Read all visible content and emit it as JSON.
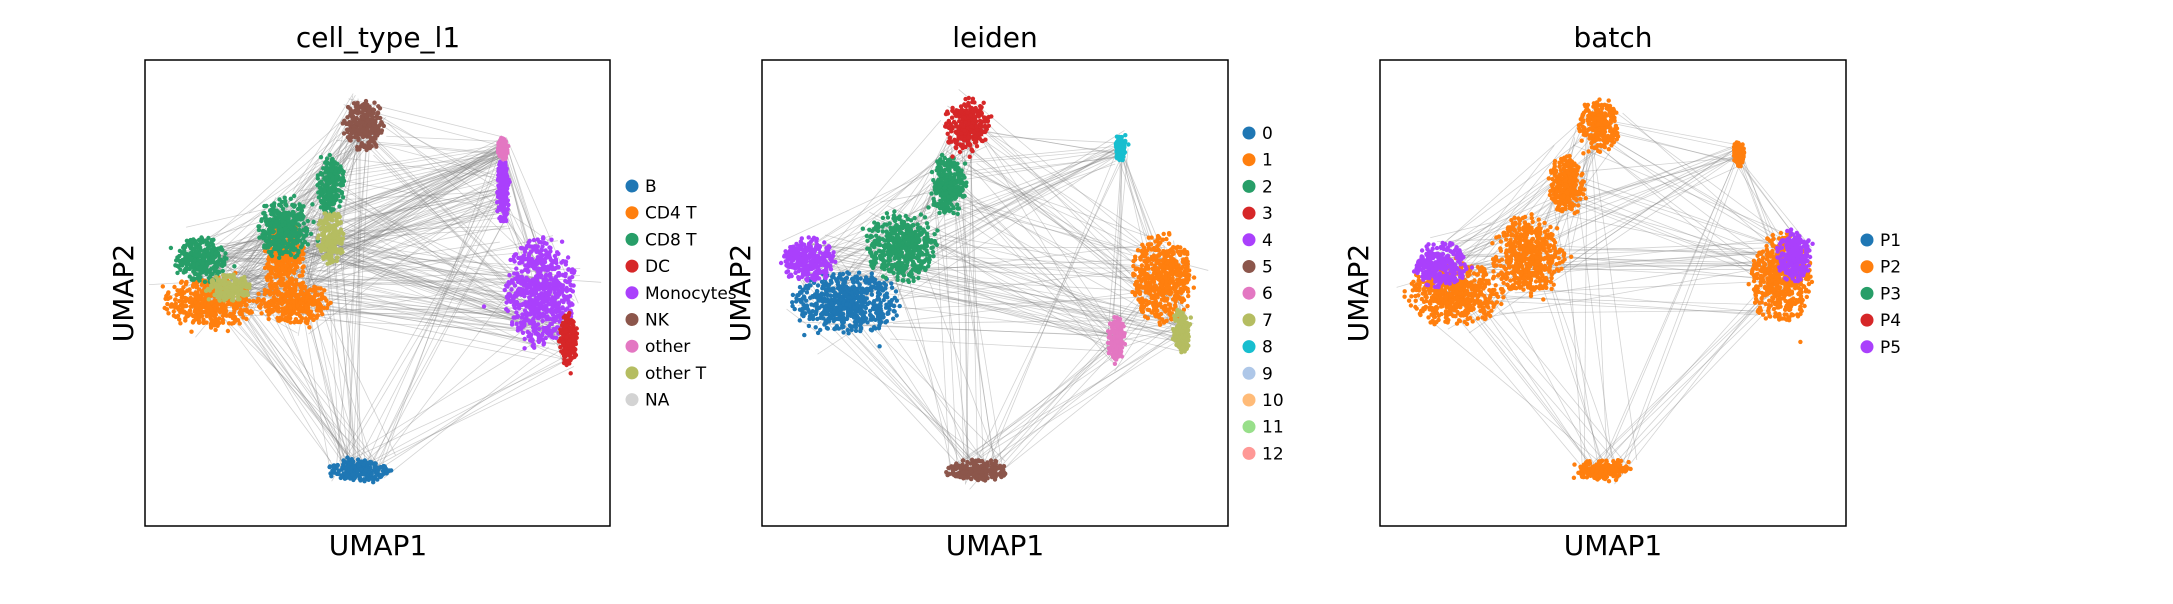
{
  "chart_data": [
    {
      "type": "scatter",
      "title": "cell_type_l1",
      "xlabel": "UMAP1",
      "ylabel": "UMAP2",
      "xticks": [],
      "yticks": [],
      "grid": false,
      "legend_placement": "right",
      "series": [
        {
          "name": "B",
          "color": "#1f77b4"
        },
        {
          "name": "CD4 T",
          "color": "#ff7f0e"
        },
        {
          "name": "CD8 T",
          "color": "#279e68"
        },
        {
          "name": "DC",
          "color": "#d62728"
        },
        {
          "name": "Monocytes",
          "color": "#aa40fc"
        },
        {
          "name": "NK",
          "color": "#8c564b"
        },
        {
          "name": "other",
          "color": "#e377c2"
        },
        {
          "name": "other T",
          "color": "#b5bd61"
        },
        {
          "name": "NA",
          "color": "#d3d3d3"
        }
      ],
      "edge_color": "#808080",
      "clusters": [
        {
          "series": "CD4 T",
          "x": 0.14,
          "y": 0.52,
          "rx": 0.1,
          "ry": 0.06
        },
        {
          "series": "CD4 T",
          "x": 0.32,
          "y": 0.52,
          "rx": 0.08,
          "ry": 0.05
        },
        {
          "series": "CD4 T",
          "x": 0.3,
          "y": 0.42,
          "rx": 0.05,
          "ry": 0.08
        },
        {
          "series": "CD8 T",
          "x": 0.12,
          "y": 0.43,
          "rx": 0.06,
          "ry": 0.05
        },
        {
          "series": "CD8 T",
          "x": 0.3,
          "y": 0.36,
          "rx": 0.06,
          "ry": 0.07
        },
        {
          "series": "CD8 T",
          "x": 0.4,
          "y": 0.27,
          "rx": 0.03,
          "ry": 0.07
        },
        {
          "series": "other T",
          "x": 0.4,
          "y": 0.38,
          "rx": 0.03,
          "ry": 0.06
        },
        {
          "series": "other T",
          "x": 0.18,
          "y": 0.49,
          "rx": 0.05,
          "ry": 0.03
        },
        {
          "series": "NK",
          "x": 0.47,
          "y": 0.14,
          "rx": 0.045,
          "ry": 0.06
        },
        {
          "series": "Monocytes",
          "x": 0.85,
          "y": 0.5,
          "rx": 0.08,
          "ry": 0.12
        },
        {
          "series": "Monocytes",
          "x": 0.77,
          "y": 0.28,
          "rx": 0.015,
          "ry": 0.08
        },
        {
          "series": "DC",
          "x": 0.91,
          "y": 0.6,
          "rx": 0.02,
          "ry": 0.06
        },
        {
          "series": "other",
          "x": 0.77,
          "y": 0.19,
          "rx": 0.012,
          "ry": 0.025
        },
        {
          "series": "B",
          "x": 0.46,
          "y": 0.88,
          "rx": 0.07,
          "ry": 0.025
        }
      ]
    },
    {
      "type": "scatter",
      "title": "leiden",
      "xlabel": "UMAP1",
      "ylabel": "UMAP2",
      "xticks": [],
      "yticks": [],
      "grid": false,
      "legend_placement": "right",
      "series": [
        {
          "name": "0",
          "color": "#1f77b4"
        },
        {
          "name": "1",
          "color": "#ff7f0e"
        },
        {
          "name": "2",
          "color": "#279e68"
        },
        {
          "name": "3",
          "color": "#d62728"
        },
        {
          "name": "4",
          "color": "#aa40fc"
        },
        {
          "name": "5",
          "color": "#8c564b"
        },
        {
          "name": "6",
          "color": "#e377c2"
        },
        {
          "name": "7",
          "color": "#b5bd61"
        },
        {
          "name": "8",
          "color": "#17becf"
        },
        {
          "name": "9",
          "color": "#aec7e8"
        },
        {
          "name": "10",
          "color": "#ffbb78"
        },
        {
          "name": "11",
          "color": "#98df8a"
        },
        {
          "name": "12",
          "color": "#ff9896"
        }
      ],
      "edge_color": "#808080",
      "clusters": [
        {
          "series": "0",
          "x": 0.18,
          "y": 0.52,
          "rx": 0.12,
          "ry": 0.07
        },
        {
          "series": "4",
          "x": 0.1,
          "y": 0.43,
          "rx": 0.06,
          "ry": 0.05
        },
        {
          "series": "2",
          "x": 0.3,
          "y": 0.4,
          "rx": 0.08,
          "ry": 0.08
        },
        {
          "series": "2",
          "x": 0.4,
          "y": 0.27,
          "rx": 0.04,
          "ry": 0.07
        },
        {
          "series": "3",
          "x": 0.44,
          "y": 0.14,
          "rx": 0.05,
          "ry": 0.06
        },
        {
          "series": "1",
          "x": 0.86,
          "y": 0.47,
          "rx": 0.07,
          "ry": 0.1
        },
        {
          "series": "6",
          "x": 0.76,
          "y": 0.6,
          "rx": 0.02,
          "ry": 0.05
        },
        {
          "series": "7",
          "x": 0.9,
          "y": 0.58,
          "rx": 0.02,
          "ry": 0.05
        },
        {
          "series": "8",
          "x": 0.77,
          "y": 0.19,
          "rx": 0.012,
          "ry": 0.03
        },
        {
          "series": "5",
          "x": 0.46,
          "y": 0.88,
          "rx": 0.07,
          "ry": 0.025
        }
      ]
    },
    {
      "type": "scatter",
      "title": "batch",
      "xlabel": "UMAP1",
      "ylabel": "UMAP2",
      "xticks": [],
      "yticks": [],
      "grid": false,
      "legend_placement": "right",
      "series": [
        {
          "name": "P1",
          "color": "#1f77b4"
        },
        {
          "name": "P2",
          "color": "#ff7f0e"
        },
        {
          "name": "P3",
          "color": "#279e68"
        },
        {
          "name": "P4",
          "color": "#d62728"
        },
        {
          "name": "P5",
          "color": "#aa40fc"
        }
      ],
      "edge_color": "#808080",
      "clusters": [
        {
          "series": "P2",
          "x": 0.16,
          "y": 0.5,
          "rx": 0.11,
          "ry": 0.07
        },
        {
          "series": "P5",
          "x": 0.13,
          "y": 0.44,
          "rx": 0.06,
          "ry": 0.05
        },
        {
          "series": "P2",
          "x": 0.32,
          "y": 0.42,
          "rx": 0.08,
          "ry": 0.09
        },
        {
          "series": "P2",
          "x": 0.4,
          "y": 0.27,
          "rx": 0.04,
          "ry": 0.07
        },
        {
          "series": "P2",
          "x": 0.47,
          "y": 0.14,
          "rx": 0.045,
          "ry": 0.06
        },
        {
          "series": "P2",
          "x": 0.86,
          "y": 0.47,
          "rx": 0.07,
          "ry": 0.1
        },
        {
          "series": "P5",
          "x": 0.89,
          "y": 0.42,
          "rx": 0.04,
          "ry": 0.06
        },
        {
          "series": "P2",
          "x": 0.77,
          "y": 0.2,
          "rx": 0.012,
          "ry": 0.03
        },
        {
          "series": "P2",
          "x": 0.48,
          "y": 0.88,
          "rx": 0.06,
          "ry": 0.025
        }
      ]
    }
  ]
}
